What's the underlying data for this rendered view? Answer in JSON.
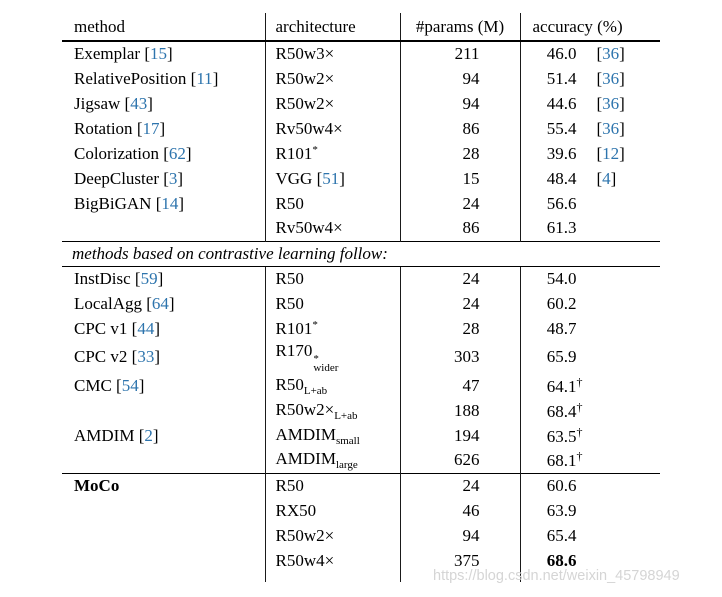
{
  "colors": {
    "citation_blue": "#2d74ad",
    "text": "#000000",
    "watermark_gray": "#d5d5d5"
  },
  "watermark": {
    "text": "https://blog.csdn.net/weixin_45798949"
  },
  "table": {
    "headers": [
      "method",
      "architecture",
      "#params (M)",
      "accuracy (%)"
    ],
    "sections": [
      {
        "name": "prior-self-supervised-methods",
        "rows": [
          {
            "method": {
              "label": "Exemplar",
              "cite": "15"
            },
            "arch": {
              "base": "R50w3×"
            },
            "params": "211",
            "acc": {
              "val": "46.0",
              "cite": "36"
            }
          },
          {
            "method": {
              "label": "RelativePosition",
              "cite": "11"
            },
            "arch": {
              "base": "R50w2×"
            },
            "params": "94",
            "acc": {
              "val": "51.4",
              "cite": "36"
            }
          },
          {
            "method": {
              "label": "Jigsaw",
              "cite": "43"
            },
            "arch": {
              "base": "R50w2×"
            },
            "params": "94",
            "acc": {
              "val": "44.6",
              "cite": "36"
            }
          },
          {
            "method": {
              "label": "Rotation",
              "cite": "17"
            },
            "arch": {
              "base": "Rv50w4×"
            },
            "params": "86",
            "acc": {
              "val": "55.4",
              "cite": "36"
            }
          },
          {
            "method": {
              "label": "Colorization",
              "cite": "62"
            },
            "arch": {
              "base": "R101",
              "sup": "*"
            },
            "params": "28",
            "acc": {
              "val": "39.6",
              "cite": "12"
            }
          },
          {
            "method": {
              "label": "DeepCluster",
              "cite": "3"
            },
            "arch": {
              "base": "VGG",
              "cite": "51"
            },
            "params": "15",
            "acc": {
              "val": "48.4",
              "cite": "4"
            }
          },
          {
            "method": {
              "label": "BigBiGAN",
              "cite": "14"
            },
            "arch": {
              "base": "R50"
            },
            "params": "24",
            "acc": {
              "val": "56.6"
            }
          },
          {
            "method": {},
            "arch": {
              "base": "Rv50w4×"
            },
            "params": "86",
            "acc": {
              "val": "61.3"
            }
          }
        ]
      },
      {
        "name": "contrastive-learning-methods",
        "divider": "methods based on contrastive learning follow:",
        "rows": [
          {
            "method": {
              "label": "InstDisc",
              "cite": "59"
            },
            "arch": {
              "base": "R50"
            },
            "params": "24",
            "acc": {
              "val": "54.0"
            }
          },
          {
            "method": {
              "label": "LocalAgg",
              "cite": "64"
            },
            "arch": {
              "base": "R50"
            },
            "params": "24",
            "acc": {
              "val": "60.2"
            }
          },
          {
            "method": {
              "label": "CPC v1",
              "cite": "44"
            },
            "arch": {
              "base": "R101",
              "sup": "*"
            },
            "params": "28",
            "acc": {
              "val": "48.7"
            }
          },
          {
            "method": {
              "label": "CPC v2",
              "cite": "33"
            },
            "arch": {
              "base": "R170",
              "sup": "*",
              "sub": "wider"
            },
            "params": "303",
            "acc": {
              "val": "65.9"
            }
          },
          {
            "method": {
              "label": "CMC",
              "cite": "54"
            },
            "arch": {
              "base": "R50",
              "sub": "L+ab"
            },
            "params": "47",
            "acc": {
              "val": "64.1",
              "dagger": true
            }
          },
          {
            "method": {},
            "arch": {
              "base": "R50w2×",
              "sub": "L+ab"
            },
            "params": "188",
            "acc": {
              "val": "68.4",
              "dagger": true
            }
          },
          {
            "method": {
              "label": "AMDIM",
              "cite": "2"
            },
            "arch": {
              "base": "AMDIM",
              "sub": "small"
            },
            "params": "194",
            "acc": {
              "val": "63.5",
              "dagger": true
            }
          },
          {
            "method": {},
            "arch": {
              "base": "AMDIM",
              "sub": "large"
            },
            "params": "626",
            "acc": {
              "val": "68.1",
              "dagger": true
            }
          }
        ]
      },
      {
        "name": "moco",
        "rows": [
          {
            "method": {
              "label": "MoCo",
              "bold": true
            },
            "arch": {
              "base": "R50"
            },
            "params": "24",
            "acc": {
              "val": "60.6"
            }
          },
          {
            "method": {},
            "arch": {
              "base": "RX50"
            },
            "params": "46",
            "acc": {
              "val": "63.9"
            }
          },
          {
            "method": {},
            "arch": {
              "base": "R50w2×"
            },
            "params": "94",
            "acc": {
              "val": "65.4"
            }
          },
          {
            "method": {},
            "arch": {
              "base": "R50w4×"
            },
            "params": "375",
            "acc": {
              "val": "68.6",
              "bold": true
            }
          }
        ]
      }
    ]
  }
}
